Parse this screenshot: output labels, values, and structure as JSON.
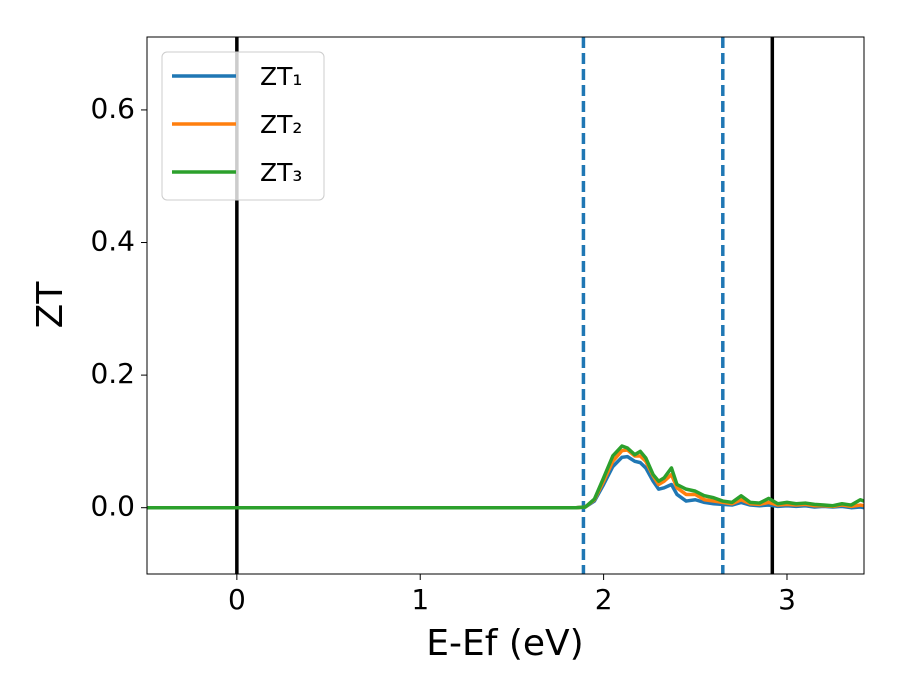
{
  "chart_data": {
    "type": "line",
    "x_label": "E-Ef (eV)",
    "y_label": "ZT",
    "xlim": [
      -0.49,
      3.42
    ],
    "ylim": [
      -0.1,
      0.71
    ],
    "xticks": [
      0,
      1,
      2,
      3
    ],
    "yticks": [
      {
        "value": 0,
        "label": "0.0"
      },
      0.2,
      0.4,
      0.6
    ],
    "legend": "upper left",
    "vlines": [
      {
        "x": 0,
        "color": "#000000",
        "style": "solid"
      },
      {
        "x": 1.89,
        "color": "#1f77b4",
        "style": "dashed"
      },
      {
        "x": 2.65,
        "color": "#1f77b4",
        "style": "dashed"
      },
      {
        "x": 2.92,
        "color": "#000000",
        "style": "solid"
      }
    ],
    "x": [
      -0.49,
      1.85,
      1.9,
      1.95,
      2.0,
      2.05,
      2.1,
      2.13,
      2.17,
      2.2,
      2.23,
      2.27,
      2.3,
      2.33,
      2.37,
      2.4,
      2.45,
      2.5,
      2.55,
      2.6,
      2.65,
      2.7,
      2.75,
      2.8,
      2.85,
      2.9,
      2.95,
      3.0,
      3.05,
      3.1,
      3.15,
      3.2,
      3.25,
      3.3,
      3.35,
      3.4,
      3.42
    ],
    "series": [
      {
        "name": "ZT₁",
        "color": "#1f77b4",
        "values": [
          0,
          0,
          0.001,
          0.01,
          0.035,
          0.062,
          0.076,
          0.077,
          0.07,
          0.068,
          0.06,
          0.04,
          0.028,
          0.03,
          0.035,
          0.02,
          0.01,
          0.012,
          0.008,
          0.006,
          0.005,
          0.004,
          0.008,
          0.004,
          0.003,
          0.004,
          0.002,
          0.003,
          0.002,
          0.003,
          0.001,
          0.002,
          0.001,
          0.002,
          0,
          0.001,
          0
        ]
      },
      {
        "name": "ZT₂",
        "color": "#ff7f0e",
        "values": [
          0,
          0,
          0.001,
          0.012,
          0.04,
          0.07,
          0.086,
          0.087,
          0.078,
          0.078,
          0.07,
          0.048,
          0.035,
          0.04,
          0.05,
          0.03,
          0.02,
          0.02,
          0.012,
          0.01,
          0.008,
          0.006,
          0.012,
          0.006,
          0.005,
          0.008,
          0.004,
          0.005,
          0.004,
          0.005,
          0.003,
          0.003,
          0.002,
          0.004,
          0.002,
          0.004,
          0.003
        ]
      },
      {
        "name": "ZT₃",
        "color": "#2ca02c",
        "values": [
          0,
          0,
          0.001,
          0.013,
          0.045,
          0.078,
          0.093,
          0.09,
          0.08,
          0.085,
          0.075,
          0.05,
          0.04,
          0.045,
          0.06,
          0.035,
          0.028,
          0.025,
          0.018,
          0.015,
          0.01,
          0.008,
          0.018,
          0.008,
          0.007,
          0.014,
          0.006,
          0.008,
          0.006,
          0.007,
          0.005,
          0.004,
          0.003,
          0.006,
          0.004,
          0.012,
          0.01
        ]
      }
    ]
  }
}
